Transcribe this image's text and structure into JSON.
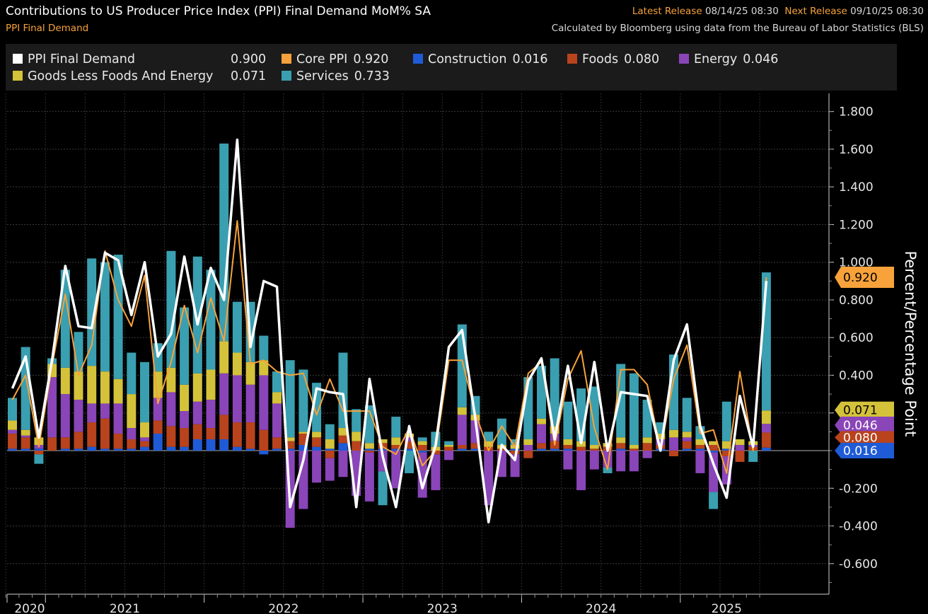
{
  "header": {
    "title": "Contributions to US Producer Price Index (PPI) Final Demand MoM% SA",
    "subtitle": "PPI Final Demand",
    "latest_release_label": "Latest Release",
    "latest_release_value": "08/14/25 08:30",
    "next_release_label": "Next Release",
    "next_release_value": "09/10/25 08:30",
    "source": "Calculated by Bloomberg using data from the Bureau of Labor Statistics (BLS)"
  },
  "legend": {
    "final_demand": {
      "label": "PPI Final Demand",
      "value": "0.900"
    },
    "core": {
      "label": "Core PPI",
      "value": "0.920"
    },
    "construction": {
      "label": "Construction",
      "value": "0.016"
    },
    "foods": {
      "label": "Foods",
      "value": "0.080"
    },
    "energy": {
      "label": "Energy",
      "value": "0.046"
    },
    "goods_ex": {
      "label": "Goods Less Foods And Energy",
      "value": "0.071"
    },
    "services": {
      "label": "Services",
      "value": "0.733"
    }
  },
  "colors": {
    "final_demand": "#ffffff",
    "core": "#f7a23a",
    "construction": "#1f5bd6",
    "foods": "#b8431c",
    "energy": "#8a45b8",
    "goods_ex": "#d4c23a",
    "services": "#3a9fb0"
  },
  "chart_data": {
    "type": "bar",
    "stacked": true,
    "ylabel": "Percent/Percentage Point",
    "ylim": [
      -0.7,
      1.8
    ],
    "y_ticks": [
      "1.800",
      "1.600",
      "1.400",
      "1.200",
      "1.000",
      "0.800",
      "0.600",
      "0.400",
      "0.200",
      "-0.200",
      "-0.400",
      "-0.600"
    ],
    "x_year_labels": [
      "2020",
      "2021",
      "2022",
      "2023",
      "2024",
      "2025"
    ],
    "x": [
      "2020-10",
      "2020-11",
      "2020-12",
      "2021-01",
      "2021-02",
      "2021-03",
      "2021-04",
      "2021-05",
      "2021-06",
      "2021-07",
      "2021-08",
      "2021-09",
      "2021-10",
      "2021-11",
      "2021-12",
      "2022-01",
      "2022-02",
      "2022-03",
      "2022-04",
      "2022-05",
      "2022-06",
      "2022-07",
      "2022-08",
      "2022-09",
      "2022-10",
      "2022-11",
      "2022-12",
      "2023-01",
      "2023-02",
      "2023-03",
      "2023-04",
      "2023-05",
      "2023-06",
      "2023-07",
      "2023-08",
      "2023-09",
      "2023-10",
      "2023-11",
      "2023-12",
      "2024-01",
      "2024-02",
      "2024-03",
      "2024-04",
      "2024-05",
      "2024-06",
      "2024-07",
      "2024-08",
      "2024-09",
      "2024-10",
      "2024-11",
      "2024-12",
      "2025-01",
      "2025-02",
      "2025-03",
      "2025-04",
      "2025-05",
      "2025-06",
      "2025-07"
    ],
    "series": [
      {
        "name": "Construction",
        "key": "construction",
        "kind": "bar",
        "values": [
          0.01,
          0.01,
          0.01,
          0.0,
          0.01,
          0.01,
          0.02,
          0.01,
          0.01,
          0.01,
          0.02,
          0.09,
          0.02,
          0.02,
          0.06,
          0.06,
          0.06,
          0.02,
          0.01,
          -0.02,
          0.01,
          0.01,
          0.03,
          0.02,
          0.01,
          0.04,
          0.0,
          0.01,
          0.01,
          0.01,
          0.01,
          -0.01,
          0.0,
          0.0,
          0.01,
          0.01,
          0.0,
          0.0,
          0.01,
          0.0,
          0.01,
          0.01,
          0.01,
          0.0,
          0.0,
          0.0,
          0.01,
          0.0,
          0.0,
          0.01,
          0.0,
          0.01,
          0.01,
          -0.01,
          0.01,
          0.0,
          0.0,
          0.016
        ]
      },
      {
        "name": "Foods",
        "key": "foods",
        "kind": "bar",
        "values": [
          0.08,
          0.06,
          -0.02,
          0.07,
          0.06,
          0.09,
          0.13,
          0.16,
          0.08,
          0.05,
          0.03,
          0.07,
          0.11,
          0.1,
          0.08,
          0.06,
          0.13,
          0.13,
          0.14,
          0.11,
          0.06,
          0.04,
          0.06,
          0.05,
          -0.04,
          0.04,
          0.05,
          -0.01,
          0.03,
          0.02,
          0.04,
          0.03,
          -0.02,
          0.02,
          0.02,
          0.03,
          0.02,
          0.01,
          -0.02,
          -0.04,
          0.03,
          0.04,
          0.02,
          0.02,
          0.01,
          0.02,
          0.03,
          0.01,
          0.04,
          0.02,
          -0.03,
          0.04,
          0.02,
          0.03,
          -0.03,
          -0.06,
          0.02,
          0.08
        ]
      },
      {
        "name": "Energy",
        "key": "energy",
        "kind": "bar",
        "values": [
          0.02,
          0.01,
          0.02,
          0.32,
          0.23,
          0.17,
          0.1,
          0.08,
          0.16,
          0.06,
          0.02,
          0.12,
          0.18,
          0.09,
          0.12,
          0.15,
          0.22,
          0.25,
          0.2,
          0.29,
          0.18,
          -0.41,
          -0.31,
          -0.17,
          -0.12,
          -0.14,
          -0.24,
          -0.26,
          -0.11,
          -0.2,
          0.02,
          -0.24,
          -0.19,
          -0.05,
          0.16,
          0.12,
          -0.29,
          -0.14,
          -0.12,
          0.03,
          0.1,
          0.04,
          -0.1,
          -0.21,
          -0.1,
          -0.09,
          -0.11,
          -0.11,
          -0.04,
          0.03,
          0.07,
          0.02,
          -0.12,
          -0.21,
          -0.15,
          0.03,
          0.01,
          0.046
        ]
      },
      {
        "name": "Goods Less Foods And Energy",
        "key": "goods_ex",
        "kind": "bar",
        "values": [
          0.05,
          0.03,
          0.04,
          0.07,
          0.14,
          0.15,
          0.2,
          0.17,
          0.13,
          0.18,
          0.08,
          0.14,
          0.13,
          0.14,
          0.15,
          0.16,
          0.17,
          0.12,
          0.12,
          0.08,
          0.06,
          0.02,
          0.01,
          0.03,
          0.05,
          0.04,
          0.05,
          0.03,
          0.02,
          0.04,
          0.02,
          0.02,
          0.02,
          0.01,
          0.04,
          0.03,
          0.03,
          0.02,
          0.02,
          0.03,
          0.03,
          0.04,
          0.03,
          0.03,
          0.02,
          0.02,
          0.03,
          0.02,
          0.03,
          0.03,
          0.04,
          0.03,
          0.03,
          0.02,
          0.04,
          0.03,
          0.02,
          0.071
        ]
      },
      {
        "name": "Services",
        "key": "services",
        "kind": "bar",
        "values": [
          0.12,
          0.44,
          -0.05,
          0.03,
          0.52,
          0.21,
          0.57,
          0.58,
          0.66,
          0.22,
          0.32,
          0.15,
          0.62,
          0.41,
          0.62,
          0.53,
          1.05,
          0.27,
          0.32,
          0.13,
          0.11,
          0.41,
          0.33,
          0.26,
          0.08,
          0.4,
          0.12,
          0.2,
          -0.18,
          0.11,
          -0.12,
          0.02,
          0.08,
          0.02,
          0.44,
          0.1,
          0.05,
          0.14,
          0.03,
          0.33,
          0.28,
          0.36,
          0.2,
          0.28,
          0.31,
          -0.03,
          0.39,
          0.38,
          0.2,
          0.06,
          0.4,
          0.18,
          0.07,
          -0.09,
          0.21,
          0.0,
          -0.06,
          0.733
        ]
      },
      {
        "name": "PPI Final Demand",
        "key": "final_demand",
        "kind": "line",
        "values": [
          0.33,
          0.5,
          0.07,
          0.48,
          0.98,
          0.66,
          0.65,
          1.05,
          1.01,
          0.72,
          1.0,
          0.5,
          0.62,
          1.03,
          0.67,
          0.97,
          0.8,
          1.65,
          0.55,
          0.9,
          0.87,
          -0.3,
          -0.05,
          0.33,
          0.31,
          0.3,
          -0.3,
          0.38,
          -0.03,
          -0.3,
          0.13,
          -0.2,
          0.03,
          0.55,
          0.64,
          0.17,
          -0.38,
          0.03,
          -0.05,
          0.37,
          0.49,
          0.06,
          0.45,
          0.04,
          0.47,
          0.0,
          0.31,
          0.3,
          0.29,
          0.0,
          0.48,
          0.67,
          0.13,
          -0.07,
          -0.25,
          0.29,
          0.02,
          0.9
        ]
      },
      {
        "name": "Core PPI",
        "key": "core",
        "kind": "line",
        "values": [
          0.27,
          0.4,
          0.02,
          0.45,
          0.83,
          0.4,
          0.56,
          1.06,
          0.8,
          0.66,
          0.93,
          0.25,
          0.47,
          0.77,
          0.52,
          0.81,
          0.58,
          1.22,
          0.46,
          0.48,
          0.42,
          0.4,
          0.41,
          0.19,
          0.38,
          0.21,
          0.21,
          0.21,
          0.02,
          -0.02,
          0.12,
          -0.08,
          0.0,
          0.48,
          0.48,
          0.2,
          0.0,
          0.13,
          0.02,
          0.41,
          0.47,
          0.03,
          0.38,
          0.53,
          0.12,
          -0.1,
          0.43,
          0.43,
          0.35,
          0.0,
          0.38,
          0.56,
          0.09,
          0.11,
          -0.12,
          0.42,
          0.0,
          0.92
        ]
      }
    ]
  }
}
